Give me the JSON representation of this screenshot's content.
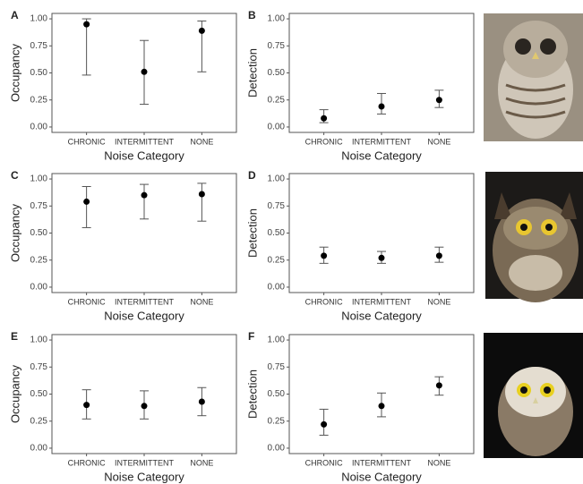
{
  "chart_data": [
    {
      "type": "errorbar",
      "label": "A",
      "y_label": "Occupancy",
      "x_label": "Noise Category",
      "categories": [
        "CHRONIC",
        "INTERMITTENT",
        "NONE"
      ],
      "values": [
        0.95,
        0.51,
        0.89
      ],
      "lower": [
        0.48,
        0.21,
        0.51
      ],
      "upper": [
        1.0,
        0.8,
        0.98
      ],
      "color": "#000000",
      "ylim": [
        -0.05,
        1.05
      ],
      "yticks": [
        {
          "value": 0,
          "label": "0.00"
        },
        {
          "value": 0.25,
          "label": "0.25"
        },
        {
          "value": 0.5,
          "label": "0.50"
        },
        {
          "value": 0.75,
          "label": "0.75"
        },
        {
          "value": 1,
          "label": "1.00"
        }
      ]
    },
    {
      "type": "errorbar",
      "label": "B",
      "y_label": "Detection",
      "x_label": "Noise Category",
      "categories": [
        "CHRONIC",
        "INTERMITTENT",
        "NONE"
      ],
      "values": [
        0.08,
        0.19,
        0.25
      ],
      "lower": [
        0.04,
        0.12,
        0.18
      ],
      "upper": [
        0.16,
        0.31,
        0.34
      ],
      "color": "#000000",
      "ylim": [
        -0.05,
        1.05
      ],
      "yticks": [
        {
          "value": 0,
          "label": "0.00"
        },
        {
          "value": 0.25,
          "label": "0.25"
        },
        {
          "value": 0.5,
          "label": "0.50"
        },
        {
          "value": 0.75,
          "label": "0.75"
        },
        {
          "value": 1,
          "label": "1.00"
        }
      ]
    },
    {
      "type": "errorbar",
      "label": "C",
      "y_label": "Occupancy",
      "x_label": "Noise Category",
      "categories": [
        "CHRONIC",
        "INTERMITTENT",
        "NONE"
      ],
      "values": [
        0.79,
        0.85,
        0.86
      ],
      "lower": [
        0.55,
        0.63,
        0.61
      ],
      "upper": [
        0.93,
        0.95,
        0.96
      ],
      "color": "#000000",
      "ylim": [
        -0.05,
        1.05
      ],
      "yticks": [
        {
          "value": 0,
          "label": "0.00"
        },
        {
          "value": 0.25,
          "label": "0.25"
        },
        {
          "value": 0.5,
          "label": "0.50"
        },
        {
          "value": 0.75,
          "label": "0.75"
        },
        {
          "value": 1,
          "label": "1.00"
        }
      ]
    },
    {
      "type": "errorbar",
      "label": "D",
      "y_label": "Detection",
      "x_label": "Noise Category",
      "categories": [
        "CHRONIC",
        "INTERMITTENT",
        "NONE"
      ],
      "values": [
        0.29,
        0.27,
        0.29
      ],
      "lower": [
        0.22,
        0.22,
        0.23
      ],
      "upper": [
        0.37,
        0.33,
        0.37
      ],
      "color": "#000000",
      "ylim": [
        -0.05,
        1.05
      ],
      "yticks": [
        {
          "value": 0,
          "label": "0.00"
        },
        {
          "value": 0.25,
          "label": "0.25"
        },
        {
          "value": 0.5,
          "label": "0.50"
        },
        {
          "value": 0.75,
          "label": "0.75"
        },
        {
          "value": 1,
          "label": "1.00"
        }
      ]
    },
    {
      "type": "errorbar",
      "label": "E",
      "y_label": "Occupancy",
      "x_label": "Noise Category",
      "categories": [
        "CHRONIC",
        "INTERMITTENT",
        "NONE"
      ],
      "values": [
        0.4,
        0.39,
        0.43
      ],
      "lower": [
        0.27,
        0.27,
        0.3
      ],
      "upper": [
        0.54,
        0.53,
        0.56
      ],
      "color": "#000000",
      "ylim": [
        -0.05,
        1.05
      ],
      "yticks": [
        {
          "value": 0,
          "label": "0.00"
        },
        {
          "value": 0.25,
          "label": "0.25"
        },
        {
          "value": 0.5,
          "label": "0.50"
        },
        {
          "value": 0.75,
          "label": "0.75"
        },
        {
          "value": 1,
          "label": "1.00"
        }
      ]
    },
    {
      "type": "errorbar",
      "label": "F",
      "y_label": "Detection",
      "x_label": "Noise Category",
      "categories": [
        "CHRONIC",
        "INTERMITTENT",
        "NONE"
      ],
      "values": [
        0.22,
        0.39,
        0.58
      ],
      "lower": [
        0.12,
        0.29,
        0.49
      ],
      "upper": [
        0.36,
        0.51,
        0.66
      ],
      "color": "#000000",
      "ylim": [
        -0.05,
        1.05
      ],
      "yticks": [
        {
          "value": 0,
          "label": "0.00"
        },
        {
          "value": 0.25,
          "label": "0.25"
        },
        {
          "value": 0.5,
          "label": "0.50"
        },
        {
          "value": 0.75,
          "label": "0.75"
        },
        {
          "value": 1,
          "label": "1.00"
        }
      ]
    }
  ]
}
